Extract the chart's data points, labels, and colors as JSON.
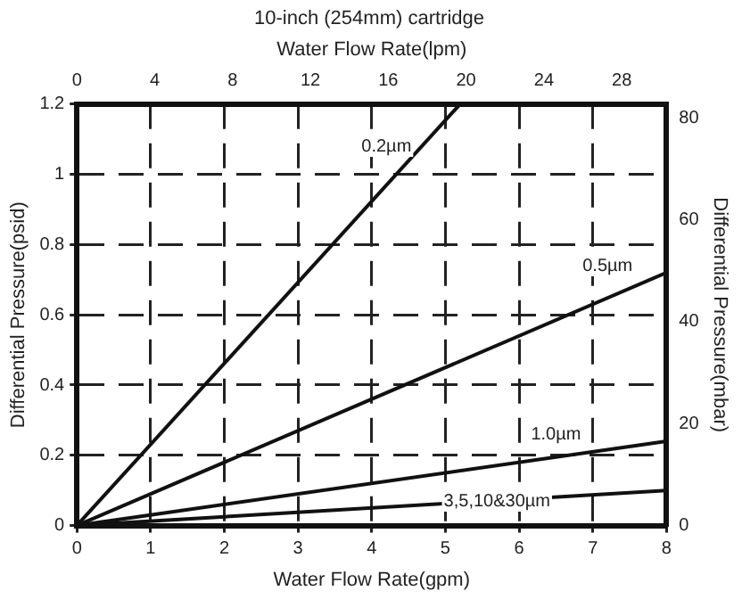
{
  "chart_data": {
    "type": "line",
    "title": "10-inch (254mm) cartridge",
    "xlabel": "Water Flow Rate(gpm)",
    "x2label": "Water Flow Rate(lpm)",
    "ylabel": "Differential Pressure(psid)",
    "y2label": "Differential Pressure(mbar)",
    "xlim": [
      0,
      8
    ],
    "xticks": [
      0,
      1,
      2,
      3,
      4,
      5,
      6,
      7,
      8
    ],
    "x2lim": [
      0,
      30.3
    ],
    "x2ticks": [
      0,
      4,
      8,
      12,
      16,
      20,
      24,
      28
    ],
    "ylim": [
      0,
      1.2
    ],
    "yticks": [
      0,
      0.2,
      0.4,
      0.6,
      0.8,
      1,
      1.2
    ],
    "y2lim": [
      0,
      82.7
    ],
    "y2ticks": [
      0,
      20,
      40,
      60,
      80
    ],
    "grid": true,
    "legend": false,
    "marker": "none",
    "line_style": "solid",
    "series": [
      {
        "color": "#111111",
        "x": [
          0,
          5.2
        ],
        "values": [
          0,
          1.2
        ]
      },
      {
        "color": "#111111",
        "x": [
          0,
          8
        ],
        "values": [
          0,
          0.72
        ]
      },
      {
        "color": "#111111",
        "x": [
          0,
          8
        ],
        "values": [
          0,
          0.24
        ]
      },
      {
        "color": "#111111",
        "x": [
          0,
          8
        ],
        "values": [
          0,
          0.1
        ]
      }
    ],
    "annotations": [
      {
        "text": "0.2µm",
        "x": 4.2,
        "y": 1.08
      },
      {
        "text": "0.5µm",
        "x": 7.2,
        "y": 0.74
      },
      {
        "text": "1.0µm",
        "x": 6.5,
        "y": 0.26
      },
      {
        "text": "3,5,10&30µm",
        "x": 5.7,
        "y": 0.07
      }
    ]
  }
}
